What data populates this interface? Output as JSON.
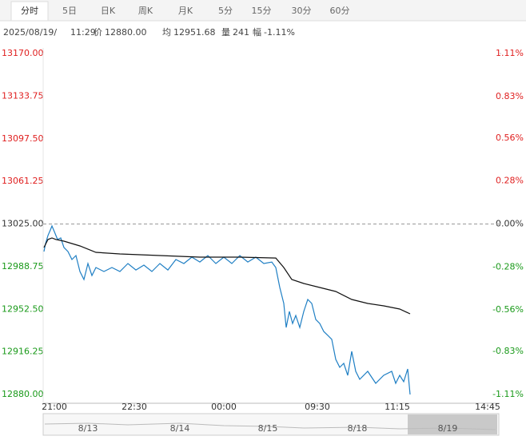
{
  "tabs": [
    "分时",
    "5日",
    "日K",
    "周K",
    "月K",
    "5分",
    "15分",
    "30分",
    "60分"
  ],
  "info": {
    "date": "2025/08/19/",
    "time": "11:29",
    "price_label": "价",
    "price": "12880.00",
    "avg_label": "均",
    "avg": "12951.68",
    "vol_label": "量",
    "vol": "241",
    "change_label": "幅",
    "change": "-1.11%"
  },
  "navigator": {
    "dates": [
      "8/13",
      "8/14",
      "8/15",
      "8/18",
      "8/19"
    ]
  },
  "chart_data": {
    "type": "line",
    "reference_line": 13025,
    "up_color": "#e02020",
    "down_color": "#1a9a1a",
    "neutral_color": "#333333",
    "xlim": [
      -14,
      557
    ],
    "xticks": [
      {
        "value": 0,
        "label": "21:00"
      },
      {
        "value": 100,
        "label": "22:30"
      },
      {
        "value": 212,
        "label": "00:00"
      },
      {
        "value": 329,
        "label": "09:30"
      },
      {
        "value": 429,
        "label": "11:15"
      },
      {
        "value": 542,
        "label": "14:45"
      }
    ],
    "ylim": [
      12880,
      13170
    ],
    "yticks": [
      {
        "value": 13170,
        "label": "13170.00"
      },
      {
        "value": 13133.75,
        "label": "13133.75"
      },
      {
        "value": 13097.5,
        "label": "13097.50"
      },
      {
        "value": 13061.25,
        "label": "13061.25"
      },
      {
        "value": 13025,
        "label": "13025.00"
      },
      {
        "value": 12988.75,
        "label": "12988.75"
      },
      {
        "value": 12952.5,
        "label": "12952.50"
      },
      {
        "value": 12916.25,
        "label": "12916.25"
      },
      {
        "value": 12880,
        "label": "12880.00"
      }
    ],
    "y2lim": [
      -1.11,
      1.11
    ],
    "y2ticks": [
      {
        "value": 1.11,
        "label": "1.11%"
      },
      {
        "value": 0.83,
        "label": "0.83%"
      },
      {
        "value": 0.56,
        "label": "0.56%"
      },
      {
        "value": 0.28,
        "label": "0.28%"
      },
      {
        "value": 0,
        "label": "0.00%"
      },
      {
        "value": -0.28,
        "label": "-0.28%"
      },
      {
        "value": -0.56,
        "label": "-0.56%"
      },
      {
        "value": -0.83,
        "label": "-0.83%"
      },
      {
        "value": -1.11,
        "label": "-1.11%"
      }
    ],
    "series": [
      {
        "name": "价",
        "color": "#1f7fc4",
        "x": [
          -13,
          -11,
          -8,
          -5,
          -3,
          0,
          4,
          8,
          12,
          17,
          22,
          27,
          32,
          37,
          42,
          47,
          52,
          62,
          72,
          82,
          92,
          102,
          112,
          122,
          132,
          142,
          152,
          162,
          172,
          182,
          192,
          202,
          212,
          222,
          232,
          242,
          252,
          262,
          272,
          277,
          282,
          287,
          290,
          294,
          298,
          302,
          307,
          312,
          317,
          322,
          327,
          332,
          337,
          342,
          347,
          352,
          357,
          362,
          367,
          372,
          377,
          382,
          392,
          402,
          412,
          422,
          427,
          432,
          437,
          442,
          445
        ],
        "values": [
          13001.6,
          13008.4,
          13015.2,
          13019.9,
          13023.3,
          13018.5,
          13011.8,
          13013.1,
          13005.0,
          13001.6,
          12994.8,
          12998.2,
          12984.6,
          12977.8,
          12991.4,
          12981.2,
          12988.0,
          12984.6,
          12988.0,
          12984.6,
          12991.4,
          12985.9,
          12990.0,
          12984.6,
          12991.4,
          12985.9,
          12994.8,
          12991.4,
          12996.8,
          12992.7,
          12998.2,
          12991.4,
          12996.8,
          12991.4,
          12998.2,
          12992.7,
          12996.8,
          12991.4,
          12992.7,
          12988.0,
          12971.0,
          12957.4,
          12937.0,
          12950.6,
          12940.4,
          12947.2,
          12937.0,
          12950.6,
          12960.8,
          12957.4,
          12943.8,
          12940.4,
          12933.6,
          12930.3,
          12926.9,
          12909.9,
          12903.1,
          12906.5,
          12896.3,
          12916.7,
          12899.7,
          12892.9,
          12899.7,
          12889.5,
          12896.3,
          12899.7,
          12889.5,
          12896.3,
          12890.9,
          12901.7,
          12880.0
        ]
      },
      {
        "name": "均",
        "color": "#111111",
        "x": [
          -13,
          -8,
          -3,
          2,
          12,
          32,
          52,
          82,
          132,
          182,
          232,
          277,
          287,
          297,
          312,
          332,
          352,
          372,
          392,
          412,
          432,
          445
        ],
        "values": [
          13005.0,
          13011.8,
          13013.1,
          13011.8,
          13010.4,
          13006.3,
          13000.9,
          12999.5,
          12998.2,
          12996.8,
          12996.8,
          12996.1,
          12988.0,
          12977.8,
          12974.4,
          12971.0,
          12967.6,
          12960.8,
          12957.4,
          12955.4,
          12952.7,
          12948.6
        ]
      }
    ]
  }
}
